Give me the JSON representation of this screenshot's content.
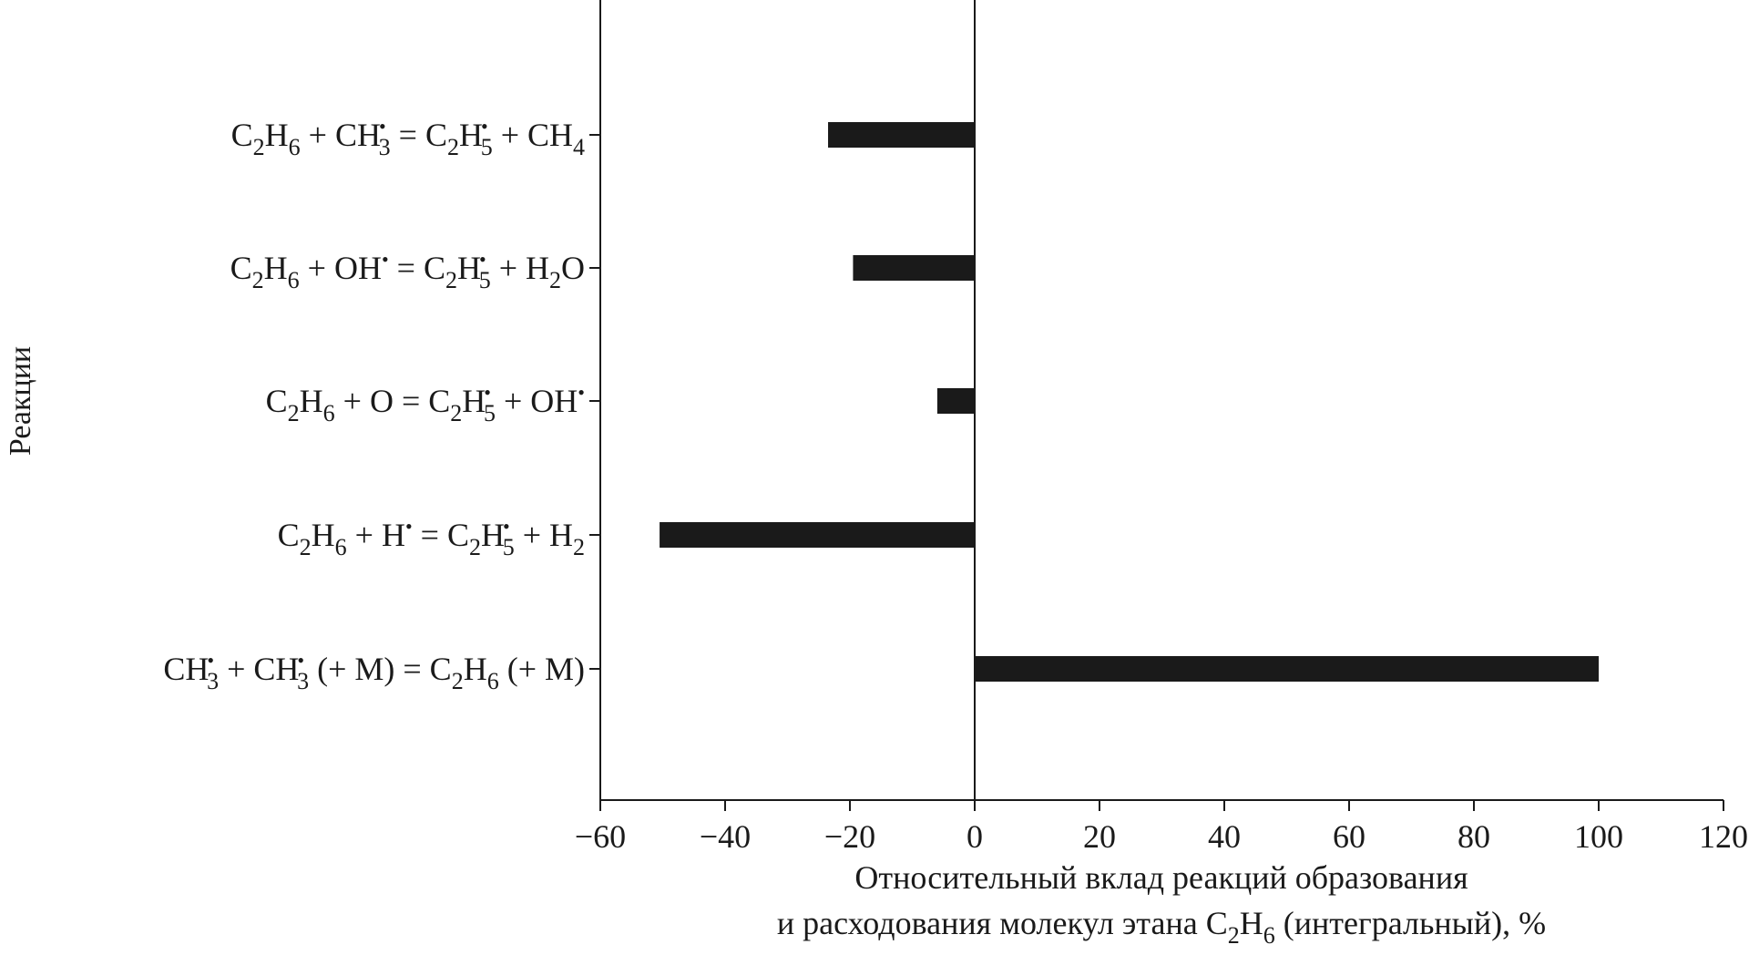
{
  "chart_data": {
    "type": "bar",
    "orientation": "horizontal",
    "title": "",
    "ylabel": "Реакции",
    "xlabel_lines": [
      "Относительный вклад реакций образования",
      "и расходования молекул этана C₂H₆ (интегральный), %"
    ],
    "xlim": [
      -60,
      120
    ],
    "xticks": [
      -60,
      -40,
      -20,
      0,
      20,
      40,
      60,
      80,
      100,
      120
    ],
    "xtick_labels": [
      "−60",
      "−40",
      "−20",
      "0",
      "20",
      "40",
      "60",
      "80",
      "100",
      "120"
    ],
    "grid": false,
    "legend": false,
    "bar_color": "#1a1a1a",
    "categories": [
      "C₂H₆ + CH₃• = C₂H₅• + CH₄",
      "C₂H₆ + OH• = C₂H₅• + H₂O",
      "C₂H₆ + O = C₂H₅• + OH•",
      "C₂H₆ + H• = C₂H₅• + H₂",
      "CH₃• + CH₃• (+ M) = C₂H₆ (+ M)"
    ],
    "category_rich": [
      [
        [
          "C",
          ""
        ],
        [
          "2",
          "sub"
        ],
        [
          "H",
          ""
        ],
        [
          "6",
          "sub"
        ],
        [
          " + CH",
          ""
        ],
        [
          "•",
          "sup"
        ],
        [
          "3",
          "sub"
        ],
        [
          " = C",
          ""
        ],
        [
          "2",
          "sub"
        ],
        [
          "H",
          ""
        ],
        [
          "•",
          "sup"
        ],
        [
          "5",
          "sub"
        ],
        [
          " + CH",
          ""
        ],
        [
          "4",
          "sub"
        ]
      ],
      [
        [
          "C",
          ""
        ],
        [
          "2",
          "sub"
        ],
        [
          "H",
          ""
        ],
        [
          "6",
          "sub"
        ],
        [
          " + OH",
          ""
        ],
        [
          "•",
          "sup"
        ],
        [
          " = C",
          ""
        ],
        [
          "2",
          "sub"
        ],
        [
          "H",
          ""
        ],
        [
          "•",
          "sup"
        ],
        [
          "5",
          "sub"
        ],
        [
          " + H",
          ""
        ],
        [
          "2",
          "sub"
        ],
        [
          "O",
          ""
        ]
      ],
      [
        [
          "C",
          ""
        ],
        [
          "2",
          "sub"
        ],
        [
          "H",
          ""
        ],
        [
          "6",
          "sub"
        ],
        [
          " + O = C",
          ""
        ],
        [
          "2",
          "sub"
        ],
        [
          "H",
          ""
        ],
        [
          "•",
          "sup"
        ],
        [
          "5",
          "sub"
        ],
        [
          " + OH",
          ""
        ],
        [
          "•",
          "sup"
        ]
      ],
      [
        [
          "C",
          ""
        ],
        [
          "2",
          "sub"
        ],
        [
          "H",
          ""
        ],
        [
          "6",
          "sub"
        ],
        [
          " + H",
          ""
        ],
        [
          "•",
          "sup"
        ],
        [
          " = C",
          ""
        ],
        [
          "2",
          "sub"
        ],
        [
          "H",
          ""
        ],
        [
          "•",
          "sup"
        ],
        [
          "5",
          "sub"
        ],
        [
          " + H",
          ""
        ],
        [
          "2",
          "sub"
        ]
      ],
      [
        [
          "CH",
          ""
        ],
        [
          "•",
          "sup"
        ],
        [
          "3",
          "sub"
        ],
        [
          " + CH",
          ""
        ],
        [
          "•",
          "sup"
        ],
        [
          "3",
          "sub"
        ],
        [
          " (+ M) = C",
          ""
        ],
        [
          "2",
          "sub"
        ],
        [
          "H",
          ""
        ],
        [
          "6",
          "sub"
        ],
        [
          " (+ M)",
          ""
        ]
      ]
    ],
    "values": [
      -23.5,
      -19.5,
      -6,
      -50.5,
      100
    ]
  }
}
